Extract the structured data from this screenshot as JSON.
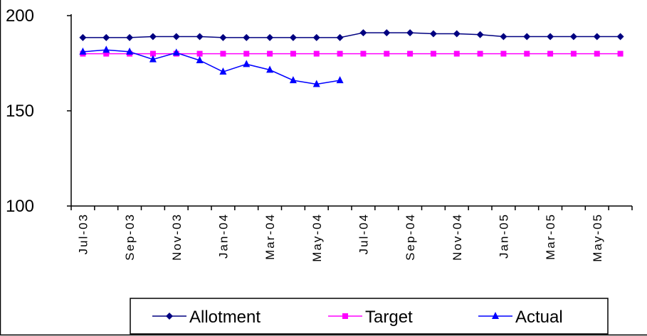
{
  "chart_data": {
    "type": "line",
    "categories": [
      "Jul-03",
      null,
      "Sep-03",
      null,
      "Nov-03",
      null,
      "Jan-04",
      null,
      "Mar-04",
      null,
      "May-04",
      null,
      "Jul-04",
      null,
      "Sep-04",
      null,
      "Nov-04",
      null,
      "Jan-05",
      null,
      "Mar-05",
      null,
      "May-05",
      null
    ],
    "series": [
      {
        "name": "Allotment",
        "color": "#000080",
        "marker": "diamond",
        "values": [
          188.5,
          188.5,
          188.5,
          189,
          189,
          189,
          188.5,
          188.5,
          188.5,
          188.5,
          188.5,
          188.5,
          191,
          191,
          191,
          190.5,
          190.5,
          190,
          189,
          189,
          189,
          189,
          189,
          189
        ]
      },
      {
        "name": "Target",
        "color": "#ff00ff",
        "marker": "square",
        "values": [
          180,
          180,
          180,
          180,
          180,
          180,
          180,
          180,
          180,
          180,
          180,
          180,
          180,
          180,
          180,
          180,
          180,
          180,
          180,
          180,
          180,
          180,
          180,
          180
        ]
      },
      {
        "name": "Actual",
        "color": "#0000ff",
        "marker": "triangle",
        "values": [
          181,
          182,
          181,
          177,
          180.5,
          176.5,
          170.5,
          174.5,
          171.5,
          166,
          164,
          166,
          null,
          null,
          null,
          null,
          null,
          null,
          null,
          null,
          null,
          null,
          null,
          null
        ]
      }
    ],
    "ylim": [
      100,
      200
    ],
    "yticks": [
      100,
      150,
      200
    ],
    "legend": "bottom"
  }
}
